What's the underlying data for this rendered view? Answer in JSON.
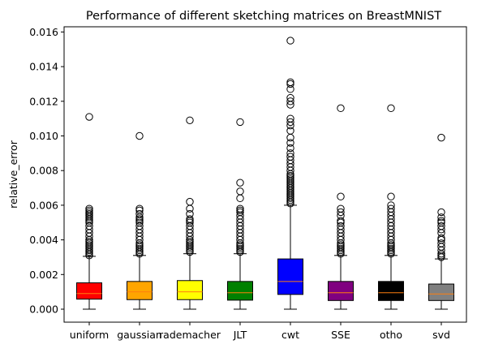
{
  "chart_data": {
    "type": "box",
    "title": "Performance of different sketching matrices on BreastMNIST",
    "xlabel": "",
    "ylabel": "relative_error",
    "ylim": [
      -0.00075,
      0.0163
    ],
    "yticks": [
      "0.000",
      "0.002",
      "0.004",
      "0.006",
      "0.008",
      "0.010",
      "0.012",
      "0.014",
      "0.016"
    ],
    "ytick_values": [
      0,
      0.002,
      0.004,
      0.006,
      0.008,
      0.01,
      0.012,
      0.014,
      0.016
    ],
    "grid": false,
    "median_color": "#ff7f0e",
    "categories": [
      "uniform",
      "gaussian",
      "rademacher",
      "JLT",
      "cwt",
      "SSE",
      "otho",
      "svd"
    ],
    "boxes": [
      {
        "label": "uniform",
        "color": "#ff0000",
        "whislo": 0.0,
        "q1": 0.00058,
        "med": 0.0009,
        "q3": 0.00152,
        "whishi": 0.00305,
        "fliers": [
          0.0031,
          0.0032,
          0.0033,
          0.0034,
          0.0035,
          0.0036,
          0.0037,
          0.0038,
          0.0039,
          0.004,
          0.0042,
          0.0044,
          0.0046,
          0.0048,
          0.005,
          0.0051,
          0.0052,
          0.0053,
          0.0054,
          0.0055,
          0.0056,
          0.0057,
          0.0058,
          0.0111
        ]
      },
      {
        "label": "gaussian",
        "color": "#ffa500",
        "whislo": 0.0,
        "q1": 0.00055,
        "med": 0.001,
        "q3": 0.0016,
        "whishi": 0.0031,
        "fliers": [
          0.0032,
          0.0033,
          0.0034,
          0.0035,
          0.0036,
          0.0037,
          0.0038,
          0.004,
          0.0042,
          0.0044,
          0.0046,
          0.0048,
          0.005,
          0.0051,
          0.0052,
          0.0053,
          0.0055,
          0.0057,
          0.0058,
          0.01
        ]
      },
      {
        "label": "rademacher",
        "color": "#ffff00",
        "whislo": 0.0,
        "q1": 0.00055,
        "med": 0.001,
        "q3": 0.00165,
        "whishi": 0.0032,
        "fliers": [
          0.0033,
          0.0034,
          0.0035,
          0.0036,
          0.0037,
          0.0038,
          0.0039,
          0.004,
          0.0042,
          0.0044,
          0.0046,
          0.0048,
          0.005,
          0.0051,
          0.0052,
          0.0055,
          0.0058,
          0.0062,
          0.0109
        ]
      },
      {
        "label": "JLT",
        "color": "#008000",
        "whislo": 0.0,
        "q1": 0.00052,
        "med": 0.00095,
        "q3": 0.0016,
        "whishi": 0.0032,
        "fliers": [
          0.0033,
          0.0034,
          0.0035,
          0.0036,
          0.0037,
          0.0038,
          0.004,
          0.0042,
          0.0044,
          0.0046,
          0.0048,
          0.005,
          0.0052,
          0.0054,
          0.0056,
          0.0057,
          0.0058,
          0.0064,
          0.0068,
          0.0073,
          0.0108
        ]
      },
      {
        "label": "cwt",
        "color": "#0000ff",
        "whislo": 0.0,
        "q1": 0.00085,
        "med": 0.0016,
        "q3": 0.0029,
        "whishi": 0.006,
        "fliers": [
          0.0061,
          0.0062,
          0.0063,
          0.0064,
          0.0065,
          0.0066,
          0.0067,
          0.0068,
          0.0069,
          0.007,
          0.0071,
          0.0072,
          0.0073,
          0.0074,
          0.0075,
          0.0076,
          0.0077,
          0.0078,
          0.008,
          0.0082,
          0.0084,
          0.0086,
          0.0088,
          0.009,
          0.0093,
          0.0096,
          0.0099,
          0.0103,
          0.0106,
          0.0108,
          0.011,
          0.0118,
          0.012,
          0.0122,
          0.0127,
          0.013,
          0.0131,
          0.0155
        ]
      },
      {
        "label": "SSE",
        "color": "#800080",
        "whislo": 0.0,
        "q1": 0.0005,
        "med": 0.00095,
        "q3": 0.0016,
        "whishi": 0.0031,
        "fliers": [
          0.0032,
          0.0033,
          0.0034,
          0.0035,
          0.0036,
          0.0037,
          0.0038,
          0.004,
          0.0042,
          0.0044,
          0.0046,
          0.0048,
          0.005,
          0.0051,
          0.0054,
          0.0056,
          0.0058,
          0.0065,
          0.0116
        ]
      },
      {
        "label": "otho",
        "color": "#000000",
        "whislo": 0.0,
        "q1": 0.0005,
        "med": 0.00095,
        "q3": 0.0016,
        "whishi": 0.0031,
        "fliers": [
          0.0032,
          0.0033,
          0.0034,
          0.0035,
          0.0036,
          0.0037,
          0.0038,
          0.004,
          0.0042,
          0.0044,
          0.0046,
          0.0048,
          0.005,
          0.0052,
          0.0054,
          0.0056,
          0.0058,
          0.006,
          0.0065,
          0.0116
        ]
      },
      {
        "label": "svd",
        "color": "#808080",
        "whislo": 0.0,
        "q1": 0.0005,
        "med": 0.00088,
        "q3": 0.00145,
        "whishi": 0.0029,
        "fliers": [
          0.003,
          0.0031,
          0.0032,
          0.0034,
          0.0036,
          0.0038,
          0.004,
          0.0041,
          0.0044,
          0.0046,
          0.0048,
          0.005,
          0.0051,
          0.0053,
          0.0056,
          0.0099
        ]
      }
    ]
  }
}
